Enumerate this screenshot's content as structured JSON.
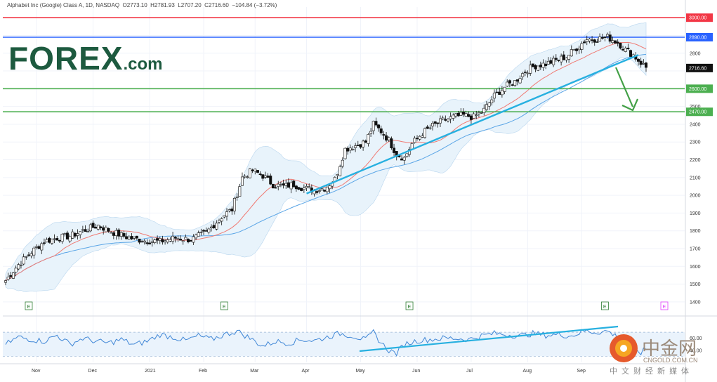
{
  "header": {
    "symbol_text": "Alphabet Inc (Google) Class A, 1D, NASDAQ",
    "open": "O2773.10",
    "high": "H2781.93",
    "low": "L2707.20",
    "close": "C2716.60",
    "change": "−104.84 (−3.72%)"
  },
  "logo": {
    "main": "FOREX",
    "suffix": ".com"
  },
  "watermark": {
    "cn_name": "中金网",
    "domain": "CNGOLD.COM.CN",
    "sub": "中文财经新媒体"
  },
  "colors": {
    "red_line": "#f23645",
    "blue_line": "#2962ff",
    "green_line": "#4caf50",
    "trend_line": "#27b0e0",
    "sma_red": "#f07a73",
    "sma_blue": "#5aa5e6",
    "band_fill": "#e8f3fb",
    "arrow": "#43a047",
    "rsi": "#3f86d6"
  },
  "chart_data": [
    {
      "type": "candlestick",
      "title": "",
      "ylim": [
        1360,
        3060
      ],
      "y_ticks": [
        "3000.00",
        "2890.00",
        "2800",
        "2716.60",
        "2600.00",
        "2500",
        "2470.00",
        "2400",
        "2300",
        "2200",
        "2100",
        "2000",
        "1900",
        "1800",
        "1700",
        "1600",
        "1500",
        "1400"
      ],
      "x_labels": [
        "Nov",
        "Dec",
        "2021",
        "Feb",
        "Mar",
        "Apr",
        "May",
        "Jun",
        "Jul",
        "Aug",
        "Sep"
      ],
      "horizontal_levels": [
        {
          "value": 3000,
          "label": "3000.00",
          "color": "#f23645"
        },
        {
          "value": 2890,
          "label": "2890.00",
          "color": "#2962ff"
        },
        {
          "value": 2600,
          "label": "2600.00",
          "color": "#4caf50"
        },
        {
          "value": 2470,
          "label": "2470.00",
          "color": "#4caf50"
        }
      ],
      "last_price": {
        "value": 2716.6,
        "label": "2716.60"
      },
      "price_path": [
        [
          0,
          1520
        ],
        [
          5,
          1610
        ],
        [
          10,
          1680
        ],
        [
          15,
          1740
        ],
        [
          20,
          1760
        ],
        [
          25,
          1770
        ],
        [
          30,
          1800
        ],
        [
          36,
          1830
        ],
        [
          42,
          1790
        ],
        [
          48,
          1760
        ],
        [
          54,
          1745
        ],
        [
          60,
          1740
        ],
        [
          66,
          1760
        ],
        [
          72,
          1750
        ],
        [
          78,
          1790
        ],
        [
          84,
          1880
        ],
        [
          88,
          1920
        ],
        [
          92,
          2100
        ],
        [
          96,
          2140
        ],
        [
          100,
          2110
        ],
        [
          104,
          2060
        ],
        [
          108,
          2050
        ],
        [
          112,
          2060
        ],
        [
          116,
          2040
        ],
        [
          120,
          2030
        ],
        [
          124,
          2040
        ],
        [
          128,
          2090
        ],
        [
          132,
          2260
        ],
        [
          136,
          2280
        ],
        [
          140,
          2300
        ],
        [
          143,
          2400
        ],
        [
          146,
          2360
        ],
        [
          149,
          2310
        ],
        [
          152,
          2230
        ],
        [
          155,
          2210
        ],
        [
          158,
          2290
        ],
        [
          162,
          2350
        ],
        [
          166,
          2390
        ],
        [
          170,
          2420
        ],
        [
          174,
          2440
        ],
        [
          178,
          2450
        ],
        [
          182,
          2440
        ],
        [
          186,
          2480
        ],
        [
          190,
          2560
        ],
        [
          194,
          2610
        ],
        [
          198,
          2640
        ],
        [
          202,
          2700
        ],
        [
          206,
          2730
        ],
        [
          210,
          2740
        ],
        [
          214,
          2760
        ],
        [
          218,
          2780
        ],
        [
          222,
          2830
        ],
        [
          226,
          2880
        ],
        [
          230,
          2880
        ],
        [
          234,
          2890
        ],
        [
          238,
          2860
        ],
        [
          241,
          2820
        ],
        [
          244,
          2790
        ],
        [
          246,
          2760
        ],
        [
          249,
          2720
        ]
      ],
      "candle_spacing": 1.1,
      "earnings_markers": [
        9,
        85,
        157,
        233,
        311
      ],
      "upcoming_marker_color": "#e040fb"
    },
    {
      "type": "line",
      "title": "",
      "ylim": [
        20,
        90
      ],
      "y_ticks": [
        "60.00",
        "40.00"
      ],
      "rsi_path": [
        [
          0,
          50
        ],
        [
          5,
          62
        ],
        [
          10,
          58
        ],
        [
          15,
          55
        ],
        [
          20,
          65
        ],
        [
          25,
          50
        ],
        [
          30,
          60
        ],
        [
          35,
          55
        ],
        [
          40,
          52
        ],
        [
          45,
          58
        ],
        [
          50,
          49
        ],
        [
          55,
          55
        ],
        [
          60,
          66
        ],
        [
          65,
          62
        ],
        [
          70,
          56
        ],
        [
          75,
          64
        ],
        [
          80,
          58
        ],
        [
          85,
          66
        ],
        [
          90,
          72
        ],
        [
          95,
          60
        ],
        [
          100,
          47
        ],
        [
          105,
          55
        ],
        [
          110,
          52
        ],
        [
          115,
          58
        ],
        [
          120,
          56
        ],
        [
          125,
          62
        ],
        [
          130,
          68
        ],
        [
          135,
          64
        ],
        [
          140,
          57
        ],
        [
          143,
          70
        ],
        [
          146,
          52
        ],
        [
          149,
          40
        ],
        [
          152,
          35
        ],
        [
          155,
          50
        ],
        [
          160,
          56
        ],
        [
          165,
          58
        ],
        [
          170,
          60
        ],
        [
          175,
          60
        ],
        [
          180,
          58
        ],
        [
          185,
          64
        ],
        [
          190,
          68
        ],
        [
          195,
          66
        ],
        [
          200,
          64
        ],
        [
          205,
          68
        ],
        [
          210,
          65
        ],
        [
          215,
          66
        ],
        [
          220,
          64
        ],
        [
          225,
          72
        ],
        [
          230,
          70
        ],
        [
          234,
          72
        ],
        [
          238,
          62
        ],
        [
          241,
          50
        ],
        [
          244,
          44
        ],
        [
          247,
          36
        ],
        [
          249,
          42
        ]
      ]
    }
  ]
}
